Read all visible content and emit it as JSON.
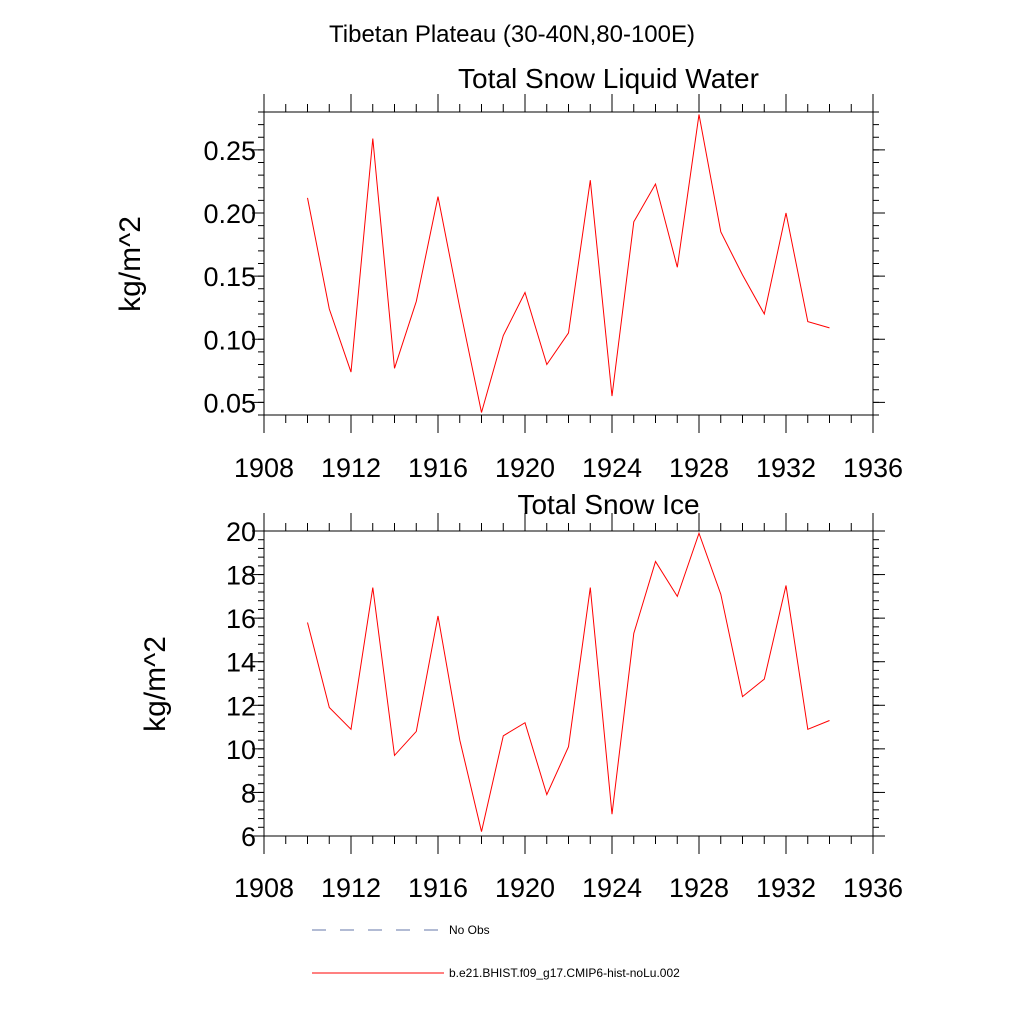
{
  "figure": {
    "title": "Tibetan Plateau (30-40N,80-100E)"
  },
  "chart_data": [
    {
      "type": "line",
      "title": "Total Snow Liquid Water",
      "xlabel": "",
      "ylabel": "kg/m^2",
      "xlim": [
        1908,
        1936
      ],
      "ylim": [
        0.04,
        0.28
      ],
      "x_ticks": [
        1908,
        1912,
        1916,
        1920,
        1924,
        1928,
        1932,
        1936
      ],
      "y_ticks": [
        "0.05",
        "0.10",
        "0.15",
        "0.20",
        "0.25"
      ],
      "y_tick_values": [
        0.05,
        0.1,
        0.15,
        0.2,
        0.25
      ],
      "series": [
        {
          "name": "b.e21.BHIST.f09_g17.CMIP6-hist-noLu.002",
          "color": "#ff0000",
          "x": [
            1910,
            1911,
            1912,
            1913,
            1914,
            1915,
            1916,
            1917,
            1918,
            1919,
            1920,
            1921,
            1922,
            1923,
            1924,
            1925,
            1926,
            1927,
            1928,
            1929,
            1930,
            1931,
            1932,
            1933,
            1934
          ],
          "values": [
            0.212,
            0.124,
            0.074,
            0.259,
            0.077,
            0.13,
            0.213,
            0.125,
            0.042,
            0.103,
            0.137,
            0.08,
            0.105,
            0.226,
            0.055,
            0.193,
            0.223,
            0.157,
            0.278,
            0.185,
            0.151,
            0.12,
            0.2,
            0.114,
            0.109
          ]
        }
      ]
    },
    {
      "type": "line",
      "title": "Total Snow Ice",
      "xlabel": "",
      "ylabel": "kg/m^2",
      "xlim": [
        1908,
        1936
      ],
      "ylim": [
        6,
        20
      ],
      "x_ticks": [
        1908,
        1912,
        1916,
        1920,
        1924,
        1928,
        1932,
        1936
      ],
      "y_ticks": [
        "6",
        "8",
        "10",
        "12",
        "14",
        "16",
        "18",
        "20"
      ],
      "y_tick_values": [
        6,
        8,
        10,
        12,
        14,
        16,
        18,
        20
      ],
      "series": [
        {
          "name": "b.e21.BHIST.f09_g17.CMIP6-hist-noLu.002",
          "color": "#ff0000",
          "x": [
            1910,
            1911,
            1912,
            1913,
            1914,
            1915,
            1916,
            1917,
            1918,
            1919,
            1920,
            1921,
            1922,
            1923,
            1924,
            1925,
            1926,
            1927,
            1928,
            1929,
            1930,
            1931,
            1932,
            1933,
            1934
          ],
          "values": [
            15.8,
            11.9,
            10.9,
            17.4,
            9.7,
            10.8,
            16.1,
            10.4,
            6.2,
            10.6,
            11.2,
            7.9,
            10.1,
            17.4,
            7.0,
            15.3,
            18.6,
            17.0,
            19.9,
            17.1,
            12.4,
            13.2,
            17.5,
            10.9,
            11.3
          ]
        }
      ]
    }
  ],
  "legend": {
    "placement": "bottom",
    "entries": [
      {
        "label": "No Obs",
        "color": "#6677aa",
        "style": "dashed"
      },
      {
        "label": "b.e21.BHIST.f09_g17.CMIP6-hist-noLu.002",
        "color": "#ff0000",
        "style": "solid"
      }
    ]
  }
}
